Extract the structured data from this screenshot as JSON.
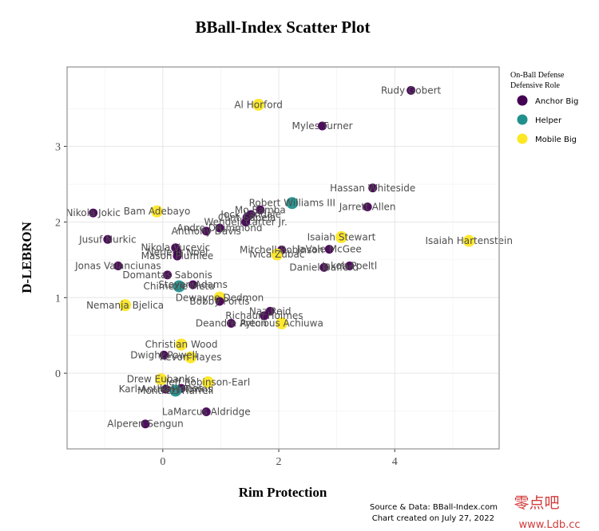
{
  "chart_data": {
    "type": "scatter",
    "title": "BBall-Index Scatter Plot",
    "xlabel": "Rim Protection",
    "ylabel": "D-LEBRON",
    "xlim": [
      -1.65,
      5.8
    ],
    "ylim": [
      -1.0,
      4.05
    ],
    "x_ticks": [
      0,
      2,
      4
    ],
    "y_ticks": [
      0,
      1,
      2,
      3
    ],
    "grid": true,
    "legend": {
      "title_line1": "On-Ball Defense",
      "title_line2": "Defensive Role",
      "placement": "right",
      "entries": [
        {
          "label": "Anchor Big",
          "color": "#440154"
        },
        {
          "label": "Helper",
          "color": "#21908d"
        },
        {
          "label": "Mobile Big",
          "color": "#fde725"
        }
      ]
    },
    "caption_line1": "Source & Data: BBall-Index.com",
    "caption_line2": "Chart created on July 27, 2022",
    "points": [
      {
        "name": "Rudy Gobert",
        "x": 4.28,
        "y": 3.74,
        "role": "Anchor Big"
      },
      {
        "name": "Al Horford",
        "x": 1.65,
        "y": 3.55,
        "role": "Mobile Big"
      },
      {
        "name": "Myles Turner",
        "x": 2.75,
        "y": 3.27,
        "role": "Anchor Big"
      },
      {
        "name": "Hassan Whiteside",
        "x": 3.62,
        "y": 2.45,
        "role": "Anchor Big"
      },
      {
        "name": "Robert Williams III",
        "x": 2.23,
        "y": 2.25,
        "role": "Helper"
      },
      {
        "name": "Jarrett Allen",
        "x": 3.53,
        "y": 2.2,
        "role": "Anchor Big"
      },
      {
        "name": "Nikola Jokic",
        "x": -1.2,
        "y": 2.12,
        "role": "Anchor Big"
      },
      {
        "name": "Bam Adebayo",
        "x": -0.1,
        "y": 2.14,
        "role": "Mobile Big"
      },
      {
        "name": "Mo Bamba",
        "x": 1.68,
        "y": 2.16,
        "role": "Anchor Big"
      },
      {
        "name": "Jock Landale",
        "x": 1.52,
        "y": 2.1,
        "role": "Anchor Big"
      },
      {
        "name": "Clint Capela",
        "x": 1.45,
        "y": 2.06,
        "role": "Anchor Big"
      },
      {
        "name": "Wendell Carter Jr.",
        "x": 1.43,
        "y": 2.0,
        "role": "Anchor Big"
      },
      {
        "name": "Andre Drummond",
        "x": 0.98,
        "y": 1.92,
        "role": "Anchor Big"
      },
      {
        "name": "Anthony Davis",
        "x": 0.75,
        "y": 1.88,
        "role": "Anchor Big"
      },
      {
        "name": "Isaiah Stewart",
        "x": 3.08,
        "y": 1.8,
        "role": "Mobile Big"
      },
      {
        "name": "Isaiah Hartenstein",
        "x": 5.28,
        "y": 1.75,
        "role": "Mobile Big"
      },
      {
        "name": "Jusuf Nurkic",
        "x": -0.95,
        "y": 1.77,
        "role": "Anchor Big"
      },
      {
        "name": "Nikola Vucevic",
        "x": 0.22,
        "y": 1.66,
        "role": "Anchor Big"
      },
      {
        "name": "Nerlens Noel",
        "x": 0.25,
        "y": 1.6,
        "role": "Anchor Big"
      },
      {
        "name": "Mason Plumlee",
        "x": 0.25,
        "y": 1.55,
        "role": "Anchor Big"
      },
      {
        "name": "JaVale McGee",
        "x": 2.87,
        "y": 1.64,
        "role": "Anchor Big"
      },
      {
        "name": "Mitchell Robinson",
        "x": 2.05,
        "y": 1.63,
        "role": "Anchor Big"
      },
      {
        "name": "Ivica Zubac",
        "x": 1.97,
        "y": 1.57,
        "role": "Mobile Big"
      },
      {
        "name": "Jonas Valanciunas",
        "x": -0.77,
        "y": 1.42,
        "role": "Anchor Big"
      },
      {
        "name": "Jakob Poeltl",
        "x": 3.22,
        "y": 1.42,
        "role": "Anchor Big"
      },
      {
        "name": "Daniel Gafford",
        "x": 2.78,
        "y": 1.4,
        "role": "Anchor Big"
      },
      {
        "name": "Domantas Sabonis",
        "x": 0.08,
        "y": 1.3,
        "role": "Anchor Big"
      },
      {
        "name": "Chimezie Metu",
        "x": 0.28,
        "y": 1.15,
        "role": "Helper"
      },
      {
        "name": "Steven Adams",
        "x": 0.52,
        "y": 1.17,
        "role": "Anchor Big"
      },
      {
        "name": "Dewayne Dedmon",
        "x": 0.98,
        "y": 1.0,
        "role": "Mobile Big"
      },
      {
        "name": "Bobby Portis",
        "x": 0.98,
        "y": 0.95,
        "role": "Anchor Big"
      },
      {
        "name": "Nemanja Bjelica",
        "x": -0.65,
        "y": 0.9,
        "role": "Mobile Big"
      },
      {
        "name": "Naz Reid",
        "x": 1.85,
        "y": 0.82,
        "role": "Anchor Big"
      },
      {
        "name": "Richaun Holmes",
        "x": 1.75,
        "y": 0.76,
        "role": "Anchor Big"
      },
      {
        "name": "Deandre Ayton",
        "x": 1.18,
        "y": 0.66,
        "role": "Anchor Big"
      },
      {
        "name": "Precious Achiuwa",
        "x": 2.05,
        "y": 0.66,
        "role": "Mobile Big"
      },
      {
        "name": "Christian Wood",
        "x": 0.32,
        "y": 0.38,
        "role": "Mobile Big"
      },
      {
        "name": "Dwight Powell",
        "x": 0.02,
        "y": 0.24,
        "role": "Anchor Big"
      },
      {
        "name": "Kevon Hayes",
        "x": 0.48,
        "y": 0.21,
        "role": "Mobile Big"
      },
      {
        "name": "Drew Eubanks",
        "x": -0.03,
        "y": -0.08,
        "role": "Mobile Big"
      },
      {
        "name": "Jeff Robinson-Earl",
        "x": 0.78,
        "y": -0.12,
        "role": "Mobile Big"
      },
      {
        "name": "Kai Jones",
        "x": 0.32,
        "y": -0.2,
        "role": "Anchor Big"
      },
      {
        "name": "Karl-Anthony Towns",
        "x": 0.05,
        "y": -0.21,
        "role": "Anchor Big"
      },
      {
        "name": "Montrezl Harrell",
        "x": 0.22,
        "y": -0.23,
        "role": "Helper"
      },
      {
        "name": "LaMarcus Aldridge",
        "x": 0.75,
        "y": -0.51,
        "role": "Anchor Big"
      },
      {
        "name": "Alperen Sengun",
        "x": -0.3,
        "y": -0.67,
        "role": "Anchor Big"
      }
    ]
  },
  "watermark": {
    "main": "零点吧",
    "sub": "www.Ldb.cc"
  }
}
